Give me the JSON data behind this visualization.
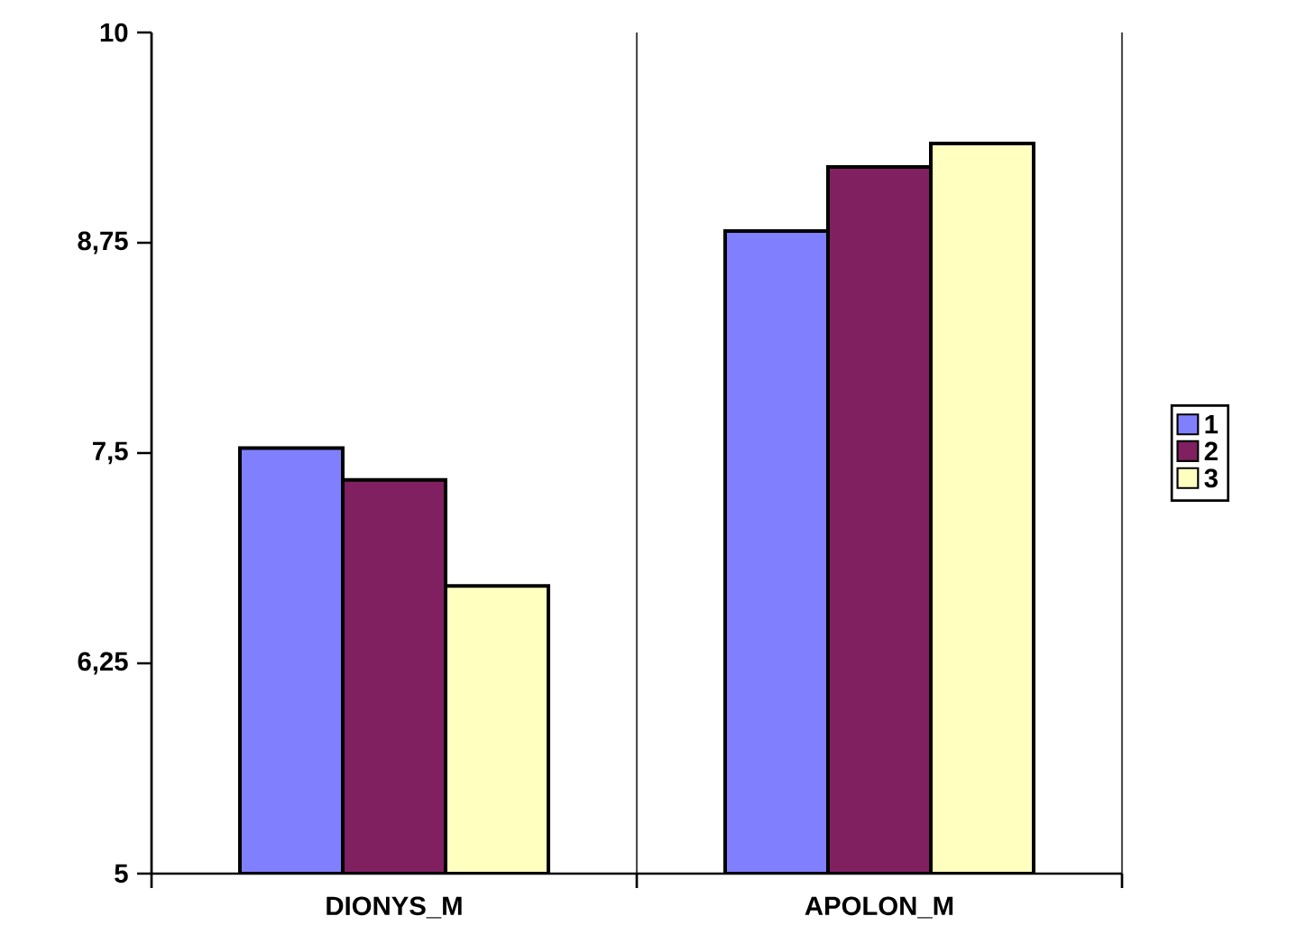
{
  "chart_data": {
    "type": "bar",
    "categories": [
      "DIONYS_M",
      "APOLON_M"
    ],
    "series": [
      {
        "name": "1",
        "color": "#8080ff",
        "values": [
          7.53,
          8.82
        ]
      },
      {
        "name": "2",
        "color": "#802060",
        "values": [
          7.34,
          9.2
        ]
      },
      {
        "name": "3",
        "color": "#ffffc0",
        "values": [
          6.71,
          9.34
        ]
      }
    ],
    "ylim": [
      5,
      10
    ],
    "yticks": [
      5,
      {
        "value": 6.25,
        "label": "6,25"
      },
      {
        "value": 7.5,
        "label": "7,5"
      },
      {
        "value": 8.75,
        "label": "8,75"
      },
      10
    ],
    "grid": "x",
    "legend": "right"
  }
}
